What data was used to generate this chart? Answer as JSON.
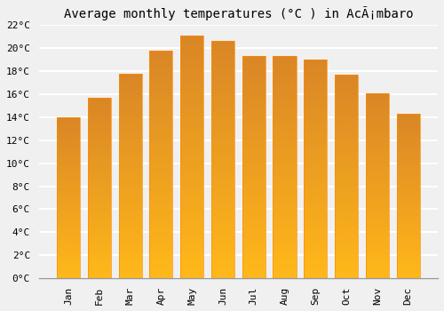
{
  "title": "Average monthly temperatures (°C ) in AcÃ¡mbaro",
  "months": [
    "Jan",
    "Feb",
    "Mar",
    "Apr",
    "May",
    "Jun",
    "Jul",
    "Aug",
    "Sep",
    "Oct",
    "Nov",
    "Dec"
  ],
  "values": [
    14.0,
    15.7,
    17.8,
    19.8,
    21.1,
    20.6,
    19.3,
    19.3,
    19.0,
    17.7,
    16.1,
    14.3
  ],
  "bar_color_bottom": "#FFCC44",
  "bar_color_top": "#FFA020",
  "bar_edge_color": "#FF8C00",
  "background_color": "#F0F0F0",
  "plot_bg_color": "#F0F0F0",
  "grid_color": "#FFFFFF",
  "ylim": [
    0,
    22
  ],
  "ytick_step": 2,
  "title_fontsize": 10,
  "tick_fontsize": 8,
  "font_family": "monospace"
}
